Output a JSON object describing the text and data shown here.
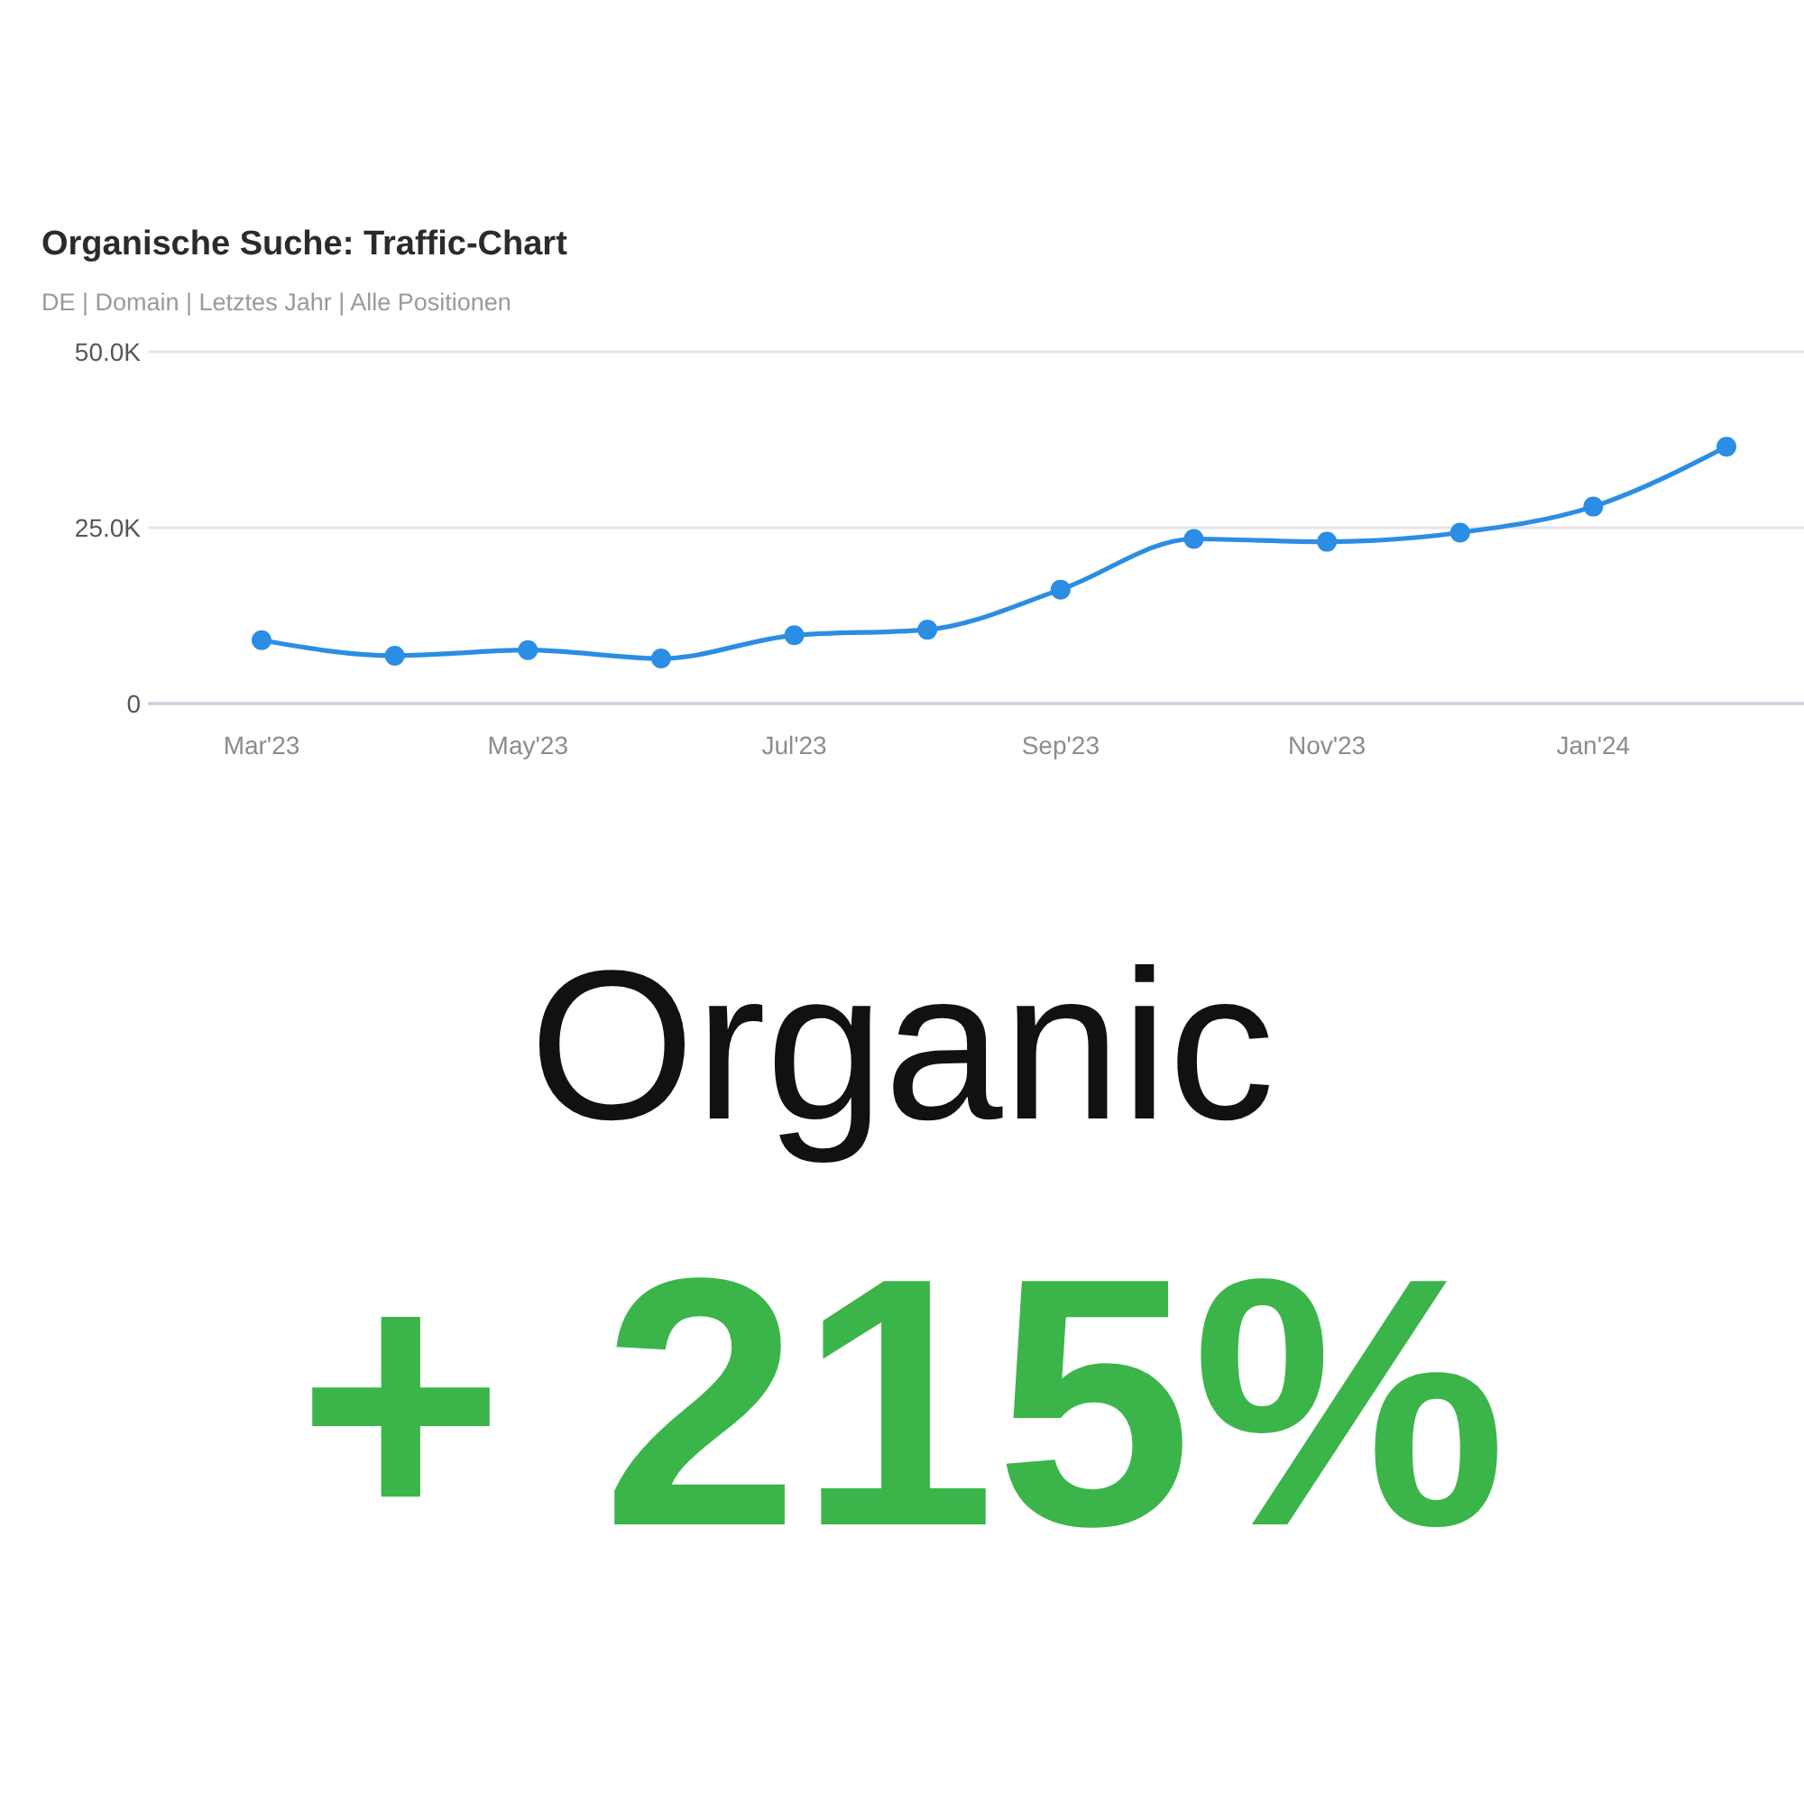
{
  "chart_data": {
    "type": "line",
    "title": "Organische Suche: Traffic-Chart",
    "subtitle": "DE | Domain | Letztes Jahr | Alle Positionen",
    "categories": [
      "Mar'23",
      null,
      "May'23",
      null,
      "Jul'23",
      null,
      "Sep'23",
      null,
      "Nov'23",
      null,
      "Jan'24",
      null
    ],
    "values": [
      9000,
      6800,
      7600,
      6400,
      9700,
      10500,
      16200,
      23400,
      23000,
      24300,
      28000,
      36500
    ],
    "color": "#2b8de3",
    "ylim": [
      0,
      50000
    ],
    "yticks": [
      {
        "value": 0,
        "label": "0"
      },
      {
        "value": 25000,
        "label": "25.0K"
      },
      {
        "value": 50000,
        "label": "50.0K"
      }
    ],
    "grid": "y",
    "marker": "circle",
    "annotations": [
      "Organic",
      "+ 215%"
    ]
  }
}
